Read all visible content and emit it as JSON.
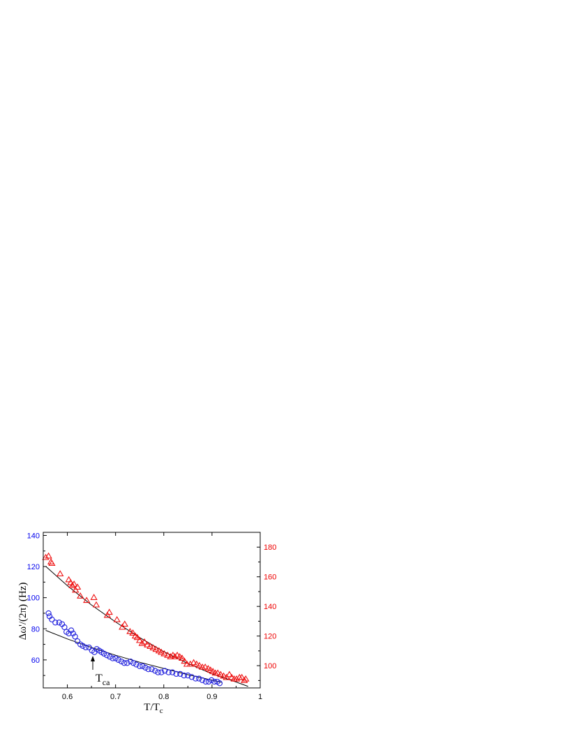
{
  "chart_data": {
    "type": "scatter",
    "xlabel": "T/T",
    "xlabel_sub": "c",
    "ylabel": "Δω'/(2π) (Hz)",
    "xlim": [
      0.55,
      1.0
    ],
    "x_ticks": [
      "0.6",
      "0.7",
      "0.8",
      "0.9",
      "1"
    ],
    "y_left_lim": [
      42,
      142
    ],
    "y_left_ticks": [
      "60",
      "80",
      "100",
      "120",
      "140"
    ],
    "y_right_lim": [
      85,
      190
    ],
    "y_right_ticks": [
      "100",
      "120",
      "140",
      "160",
      "180"
    ],
    "annotation": {
      "text": "T",
      "sub": "ca",
      "x": 0.65
    },
    "colors": {
      "left_axis": "#0000ee",
      "right_axis": "#ee0000",
      "fit": "#000000"
    },
    "series": [
      {
        "marker": "circle",
        "axis": "left",
        "color": "#2222dd",
        "points": [
          [
            0.561,
            90
          ],
          [
            0.563,
            88
          ],
          [
            0.568,
            86
          ],
          [
            0.575,
            84
          ],
          [
            0.583,
            84
          ],
          [
            0.589,
            83
          ],
          [
            0.594,
            81
          ],
          [
            0.598,
            78
          ],
          [
            0.603,
            77
          ],
          [
            0.608,
            79
          ],
          [
            0.612,
            77
          ],
          [
            0.616,
            75
          ],
          [
            0.621,
            72
          ],
          [
            0.627,
            70
          ],
          [
            0.632,
            69
          ],
          [
            0.638,
            68
          ],
          [
            0.645,
            68
          ],
          [
            0.651,
            66
          ],
          [
            0.656,
            65
          ],
          [
            0.661,
            67
          ],
          [
            0.666,
            66
          ],
          [
            0.671,
            65
          ],
          [
            0.676,
            64
          ],
          [
            0.682,
            63
          ],
          [
            0.688,
            62
          ],
          [
            0.694,
            61
          ],
          [
            0.7,
            61
          ],
          [
            0.706,
            60
          ],
          [
            0.712,
            59
          ],
          [
            0.718,
            58
          ],
          [
            0.724,
            58
          ],
          [
            0.731,
            59
          ],
          [
            0.737,
            58
          ],
          [
            0.743,
            57
          ],
          [
            0.75,
            56
          ],
          [
            0.756,
            56
          ],
          [
            0.762,
            55
          ],
          [
            0.768,
            54
          ],
          [
            0.775,
            54
          ],
          [
            0.782,
            53
          ],
          [
            0.788,
            52
          ],
          [
            0.795,
            52
          ],
          [
            0.802,
            53
          ],
          [
            0.81,
            52
          ],
          [
            0.818,
            52
          ],
          [
            0.826,
            51
          ],
          [
            0.834,
            51
          ],
          [
            0.842,
            50
          ],
          [
            0.85,
            50
          ],
          [
            0.858,
            49
          ],
          [
            0.866,
            48
          ],
          [
            0.873,
            48
          ],
          [
            0.88,
            47
          ],
          [
            0.887,
            46
          ],
          [
            0.893,
            46
          ],
          [
            0.899,
            47
          ],
          [
            0.905,
            46
          ],
          [
            0.911,
            46
          ],
          [
            0.916,
            45
          ]
        ]
      },
      {
        "marker": "triangle",
        "axis": "right",
        "color": "#ee1111",
        "points": [
          [
            0.555,
            173
          ],
          [
            0.561,
            174
          ],
          [
            0.566,
            170
          ],
          [
            0.568,
            169
          ],
          [
            0.585,
            162
          ],
          [
            0.603,
            158
          ],
          [
            0.607,
            156
          ],
          [
            0.61,
            154
          ],
          [
            0.614,
            155
          ],
          [
            0.617,
            151
          ],
          [
            0.621,
            153
          ],
          [
            0.627,
            147
          ],
          [
            0.64,
            144
          ],
          [
            0.655,
            146
          ],
          [
            0.66,
            141
          ],
          [
            0.683,
            134
          ],
          [
            0.687,
            136
          ],
          [
            0.703,
            131
          ],
          [
            0.714,
            126
          ],
          [
            0.719,
            128
          ],
          [
            0.73,
            123
          ],
          [
            0.736,
            122
          ],
          [
            0.741,
            120
          ],
          [
            0.745,
            119
          ],
          [
            0.75,
            117
          ],
          [
            0.755,
            115
          ],
          [
            0.76,
            116
          ],
          [
            0.766,
            114
          ],
          [
            0.772,
            113
          ],
          [
            0.778,
            112
          ],
          [
            0.784,
            111
          ],
          [
            0.79,
            110
          ],
          [
            0.795,
            109
          ],
          [
            0.801,
            108
          ],
          [
            0.808,
            107
          ],
          [
            0.814,
            106
          ],
          [
            0.819,
            107
          ],
          [
            0.823,
            106
          ],
          [
            0.828,
            107
          ],
          [
            0.833,
            106
          ],
          [
            0.838,
            105
          ],
          [
            0.843,
            103
          ],
          [
            0.848,
            101
          ],
          [
            0.855,
            101
          ],
          [
            0.862,
            102
          ],
          [
            0.868,
            101
          ],
          [
            0.874,
            100
          ],
          [
            0.88,
            99
          ],
          [
            0.886,
            99
          ],
          [
            0.892,
            98
          ],
          [
            0.897,
            97
          ],
          [
            0.902,
            96
          ],
          [
            0.907,
            95
          ],
          [
            0.912,
            95
          ],
          [
            0.918,
            94
          ],
          [
            0.924,
            93
          ],
          [
            0.93,
            92
          ],
          [
            0.936,
            94
          ],
          [
            0.941,
            92
          ],
          [
            0.946,
            91
          ],
          [
            0.951,
            91
          ],
          [
            0.957,
            92
          ],
          [
            0.962,
            92
          ],
          [
            0.967,
            90
          ],
          [
            0.97,
            91
          ]
        ]
      }
    ],
    "fits": [
      {
        "axis": "left",
        "points": [
          [
            0.555,
            79
          ],
          [
            0.6,
            73.5
          ],
          [
            0.65,
            68
          ],
          [
            0.7,
            63
          ],
          [
            0.75,
            58.5
          ],
          [
            0.8,
            54.5
          ],
          [
            0.85,
            50.5
          ],
          [
            0.9,
            47
          ],
          [
            0.92,
            45.5
          ]
        ]
      },
      {
        "axis": "right",
        "points": [
          [
            0.555,
            167
          ],
          [
            0.6,
            154
          ],
          [
            0.65,
            141
          ],
          [
            0.7,
            129.5
          ],
          [
            0.75,
            119
          ],
          [
            0.8,
            109.5
          ],
          [
            0.85,
            101.5
          ],
          [
            0.9,
            94.5
          ],
          [
            0.95,
            89
          ],
          [
            0.975,
            86
          ]
        ]
      }
    ]
  }
}
